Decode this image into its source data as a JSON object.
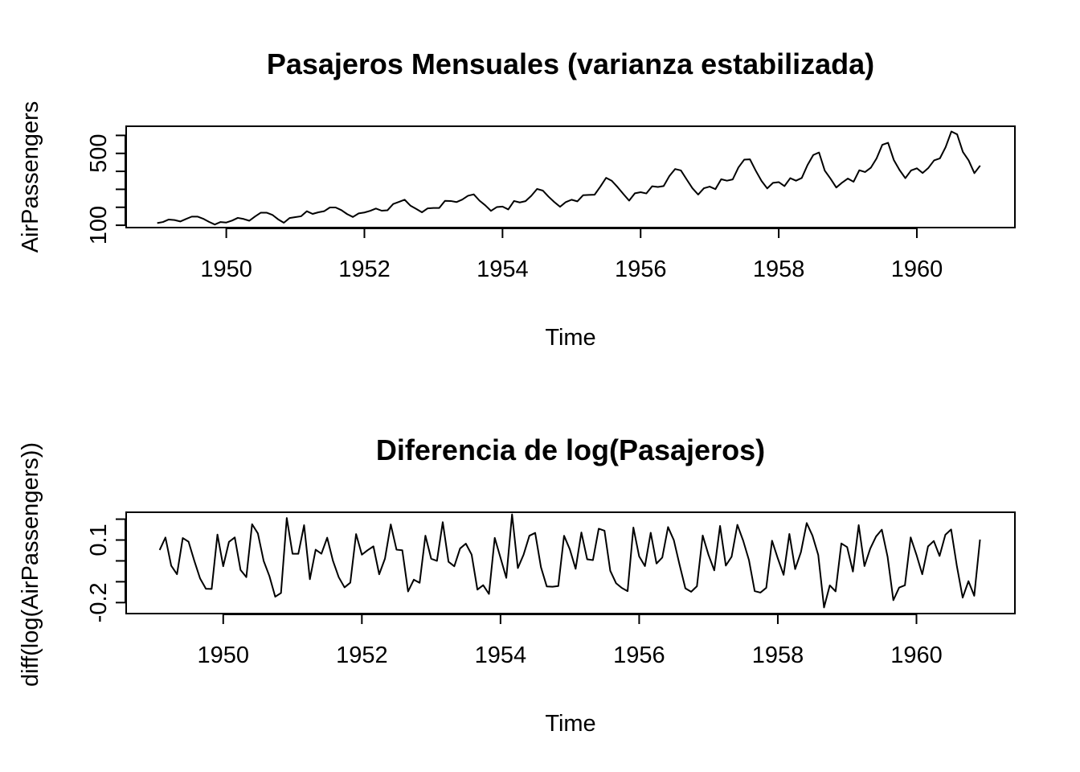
{
  "chart_data": [
    {
      "type": "line",
      "title": "Pasajeros Mensuales (varianza estabilizada)",
      "xlabel": "Time",
      "ylabel": "AirPassengers",
      "xlim": [
        1948.55,
        1961.42
      ],
      "ylim": [
        87,
        651
      ],
      "x_ticks": [
        1950,
        1952,
        1954,
        1956,
        1958,
        1960
      ],
      "y_ticks": [
        100,
        200,
        300,
        400,
        500,
        600
      ],
      "y_tick_labels": [
        "100",
        "",
        "",
        "",
        "500",
        ""
      ],
      "x_start": 1949.0,
      "x_step": 0.0833333,
      "series": [
        {
          "values": [
            112,
            118,
            132,
            129,
            121,
            135,
            148,
            148,
            136,
            119,
            104,
            118,
            115,
            126,
            141,
            135,
            125,
            149,
            170,
            170,
            158,
            133,
            114,
            140,
            145,
            150,
            178,
            163,
            172,
            178,
            199,
            199,
            184,
            162,
            146,
            166,
            171,
            180,
            193,
            181,
            183,
            218,
            230,
            242,
            209,
            191,
            172,
            194,
            196,
            196,
            236,
            235,
            229,
            243,
            264,
            272,
            237,
            211,
            180,
            201,
            204,
            188,
            235,
            227,
            234,
            264,
            302,
            293,
            259,
            229,
            203,
            229,
            242,
            233,
            267,
            269,
            270,
            315,
            364,
            347,
            312,
            274,
            237,
            278,
            284,
            277,
            317,
            313,
            318,
            374,
            413,
            405,
            355,
            306,
            271,
            306,
            315,
            301,
            356,
            348,
            355,
            422,
            465,
            467,
            404,
            347,
            305,
            336,
            340,
            318,
            362,
            348,
            363,
            435,
            491,
            505,
            404,
            359,
            310,
            337,
            360,
            342,
            406,
            396,
            420,
            472,
            548,
            559,
            463,
            407,
            362,
            405,
            417,
            391,
            419,
            461,
            472,
            535,
            622,
            606,
            508,
            461,
            390,
            432
          ]
        }
      ]
    },
    {
      "type": "line",
      "title": "Diferencia de log(Pasajeros)",
      "xlabel": "Time",
      "ylabel": "diff(log(AirPassengers))",
      "xlim": [
        1948.6,
        1961.42
      ],
      "ylim": [
        -0.2527,
        0.2331
      ],
      "x_ticks": [
        1950,
        1952,
        1954,
        1956,
        1958,
        1960
      ],
      "y_ticks": [
        -0.2,
        -0.1,
        0.0,
        0.1,
        0.2
      ],
      "y_tick_labels": [
        "-0.2",
        "",
        "",
        "0.1",
        ""
      ],
      "x_start": 1949.0833,
      "x_step": 0.0833333,
      "series": [
        {
          "values": [
            0.052186,
            0.112117,
            -0.02299,
            -0.064022,
            0.109484,
            0.091937,
            0.0,
            -0.084557,
            -0.133531,
            -0.134733,
            0.126294,
            -0.025752,
            0.09135,
            0.112478,
            -0.0433,
            -0.077962,
            0.175633,
            0.131769,
            0.0,
            -0.073138,
            -0.17185,
            -0.154151,
            0.205444,
            0.034092,
            0.033902,
            0.171148,
            -0.088033,
            0.053744,
            0.034289,
            0.111226,
            0.0,
            -0.078472,
            -0.127155,
            -0.104411,
            0.128617,
            0.029667,
            0.051293,
            0.069733,
            -0.064193,
            0.010989,
            0.174693,
            0.053584,
            0.050858,
            -0.146603,
            -0.090111,
            -0.105184,
            0.120628,
            0.010257,
            0.0,
            0.185649,
            -0.004246,
            -0.025864,
            0.059339,
            0.082701,
            0.029853,
            -0.137753,
            -0.116533,
            -0.158605,
            0.110348,
            0.014815,
            -0.081678,
            0.223144,
            -0.034635,
            0.030368,
            0.120576,
            0.134132,
            -0.030254,
            -0.12241,
            -0.123922,
            -0.120513,
            0.120513,
            0.055228,
            -0.037899,
            0.136062,
            0.007463,
            0.003711,
            0.154151,
            0.144581,
            -0.047811,
            -0.106992,
            -0.129843,
            -0.145003,
            0.1597,
            0.021353,
            -0.024949,
            0.134862,
            -0.012698,
            0.015848,
            0.162119,
            0.09926,
            -0.01956,
            -0.131769,
            -0.148141,
            -0.121591,
            0.121591,
            0.029,
            -0.045462,
            0.167744,
            -0.022728,
            0.019915,
            0.172842,
            0.097205,
            0.004292,
            -0.144955,
            -0.152107,
            -0.12902,
            0.096887,
            0.011834,
            -0.066894,
            0.129212,
            -0.039429,
            0.0422,
            0.181383,
            0.12116,
            0.028114,
            -0.223144,
            -0.117448,
            -0.14616,
            0.083538,
            0.066139,
            -0.051293,
            0.171542,
            -0.024939,
            0.058841,
            0.116724,
            0.149652,
            0.019874,
            -0.188591,
            -0.128168,
            -0.11711,
            0.112478,
            0.029196,
            -0.064362,
            0.069163,
            0.095527,
            0.023581,
            0.125163,
            0.150654,
            -0.02606,
            -0.176321,
            -0.097127,
            -0.167251,
            0.102279
          ]
        }
      ]
    }
  ]
}
